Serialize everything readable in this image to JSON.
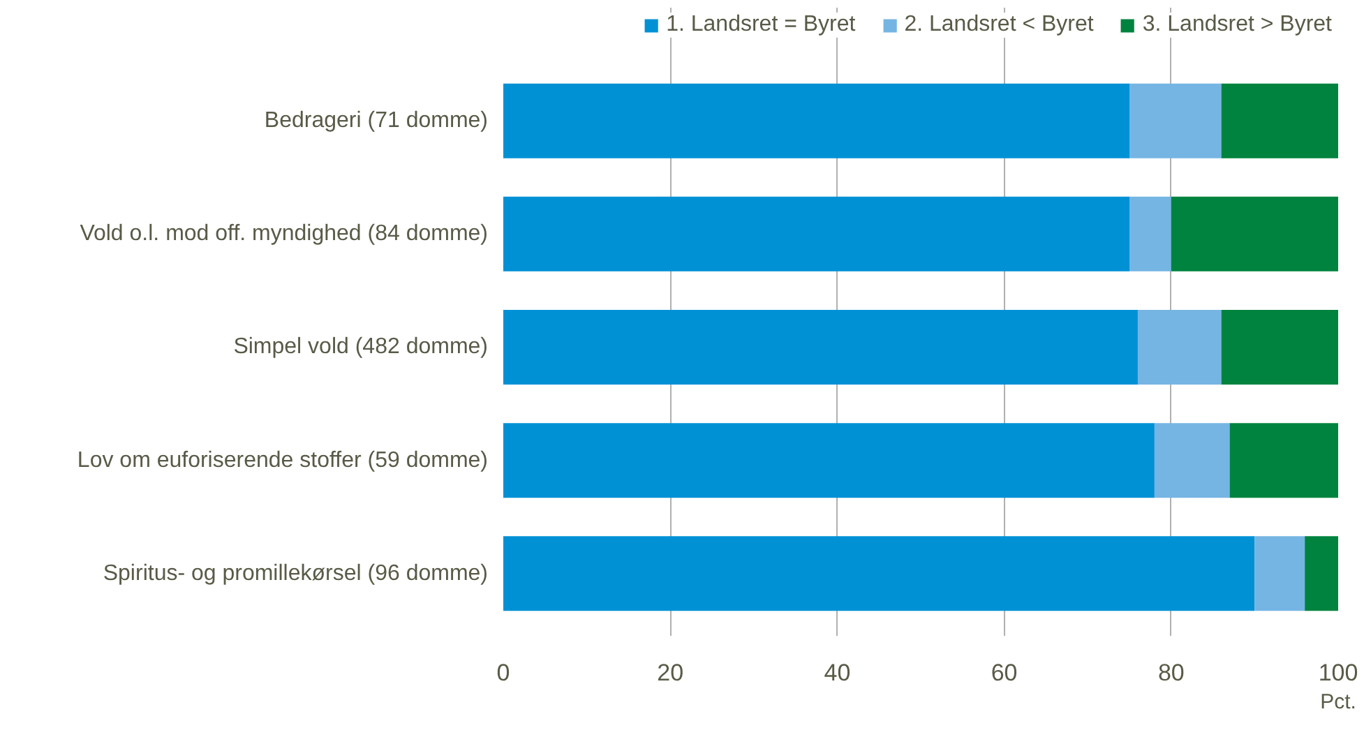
{
  "chart_data": {
    "type": "bar",
    "orientation": "horizontal",
    "stacked": true,
    "categories": [
      "Bedrageri (71 domme)",
      "Vold o.l. mod off. myndighed (84 domme)",
      "Simpel vold (482 domme)",
      "Lov om euforiserende stoffer (59 domme)",
      "Spiritus- og promillekørsel (96 domme)"
    ],
    "series": [
      {
        "name": "1. Landsret = Byret",
        "color": "#0091d5",
        "values": [
          75,
          75,
          76,
          78,
          90
        ]
      },
      {
        "name": "2. Landsret < Byret",
        "color": "#75b5e3",
        "values": [
          11,
          5,
          10,
          9,
          6
        ]
      },
      {
        "name": "3. Landsret > Byret",
        "color": "#00833e",
        "values": [
          14,
          20,
          14,
          13,
          4
        ]
      }
    ],
    "xlabel": "Pct.",
    "xlim": [
      0,
      100
    ],
    "xticks": [
      0,
      20,
      40,
      60,
      80,
      100
    ],
    "grid": "x",
    "legend": "top right"
  }
}
